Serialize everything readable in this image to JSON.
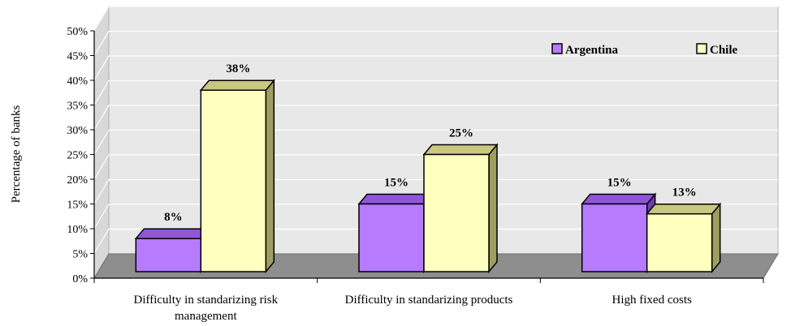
{
  "chart_data": {
    "type": "bar",
    "title": "",
    "xlabel": "",
    "ylabel": "Percentage of banks",
    "ylim": [
      0,
      50
    ],
    "yticks": [
      "0%",
      "5%",
      "10%",
      "15%",
      "20%",
      "25%",
      "30%",
      "35%",
      "40%",
      "45%",
      "50%"
    ],
    "categories": [
      [
        "Difficulty in standarizing risk",
        "management"
      ],
      [
        "Difficulty in standarizing products"
      ],
      [
        "High fixed costs"
      ]
    ],
    "series": [
      {
        "name": "Argentina",
        "values": [
          8,
          15,
          15
        ],
        "labels": [
          "8%",
          "15%",
          "15%"
        ]
      },
      {
        "name": "Chile",
        "values": [
          38,
          25,
          13
        ],
        "labels": [
          "38%",
          "25%",
          "13%"
        ]
      }
    ],
    "legend_position": "top-right",
    "grid": true,
    "style": "3d",
    "colors": {
      "argentina": "#B77BFF",
      "argentina_top": "#9156D8",
      "argentina_side": "#6F3DB0",
      "chile": "#FFFFC0",
      "chile_top": "#C8C880",
      "chile_side": "#9E9E60",
      "back_wall": "#E8E8E8",
      "floor": "#8E8E8E",
      "grid": "#FFFFFF"
    }
  }
}
